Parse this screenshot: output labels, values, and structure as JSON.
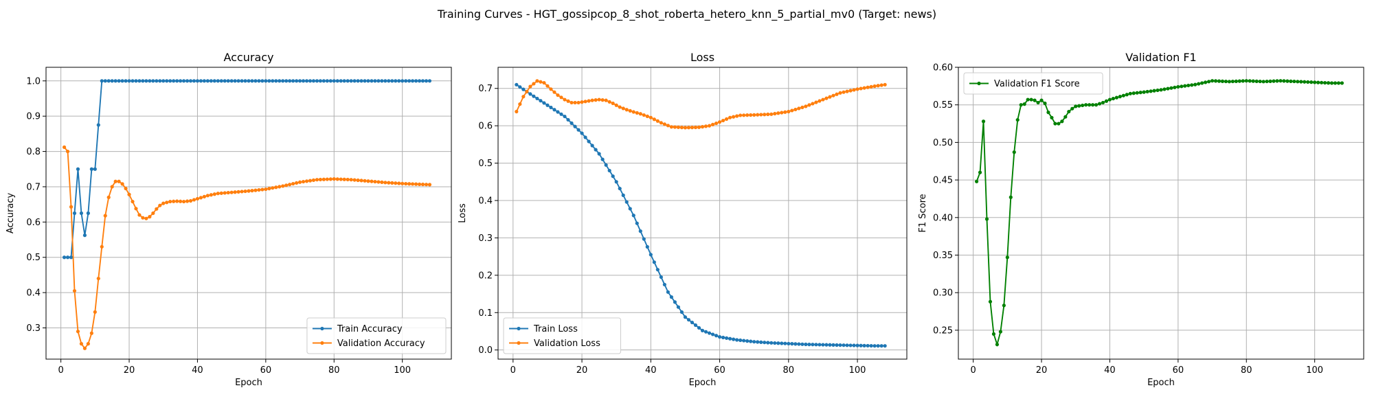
{
  "figure": {
    "suptitle": "Training Curves - HGT_gossipcop_8_shot_roberta_hetero_knn_5_partial_mv0 (Target: news)"
  },
  "chart_data": [
    {
      "type": "line",
      "title": "Accuracy",
      "xlabel": "Epoch",
      "ylabel": "Accuracy",
      "xlim": [
        -4.35,
        114.35
      ],
      "ylim": [
        0.2115,
        1.0385
      ],
      "xticks": [
        0,
        20,
        40,
        60,
        80,
        100
      ],
      "yticks": [
        0.3,
        0.4,
        0.5,
        0.6,
        0.7,
        0.8,
        0.9,
        1.0
      ],
      "ytick_decimals": 1,
      "grid": true,
      "legend_position": "lower right",
      "series": [
        {
          "name": "Train Accuracy",
          "color": "#1f77b4",
          "keypoints": [
            [
              1,
              0.5
            ],
            [
              2,
              0.5
            ],
            [
              3,
              0.5
            ],
            [
              4,
              0.625
            ],
            [
              5,
              0.75
            ],
            [
              6,
              0.625
            ],
            [
              7,
              0.5625
            ],
            [
              8,
              0.625
            ],
            [
              9,
              0.75
            ],
            [
              10,
              0.75
            ],
            [
              11,
              0.875
            ],
            [
              12,
              1.0
            ],
            [
              108,
              1.0
            ]
          ]
        },
        {
          "name": "Validation Accuracy",
          "color": "#ff7f0e",
          "keypoints": [
            [
              1,
              0.812
            ],
            [
              2,
              0.8
            ],
            [
              3,
              0.643
            ],
            [
              4,
              0.405
            ],
            [
              5,
              0.29
            ],
            [
              6,
              0.255
            ],
            [
              7,
              0.242
            ],
            [
              8,
              0.255
            ],
            [
              9,
              0.285
            ],
            [
              10,
              0.345
            ],
            [
              11,
              0.44
            ],
            [
              12,
              0.53
            ],
            [
              13,
              0.618
            ],
            [
              14,
              0.67
            ],
            [
              15,
              0.7
            ],
            [
              16,
              0.715
            ],
            [
              17,
              0.715
            ],
            [
              18,
              0.708
            ],
            [
              19,
              0.695
            ],
            [
              20,
              0.678
            ],
            [
              21,
              0.658
            ],
            [
              22,
              0.638
            ],
            [
              23,
              0.62
            ],
            [
              24,
              0.612
            ],
            [
              25,
              0.61
            ],
            [
              26,
              0.615
            ],
            [
              27,
              0.625
            ],
            [
              28,
              0.637
            ],
            [
              29,
              0.647
            ],
            [
              30,
              0.653
            ],
            [
              32,
              0.658
            ],
            [
              34,
              0.659
            ],
            [
              36,
              0.658
            ],
            [
              38,
              0.66
            ],
            [
              40,
              0.666
            ],
            [
              43,
              0.675
            ],
            [
              46,
              0.681
            ],
            [
              50,
              0.684
            ],
            [
              55,
              0.688
            ],
            [
              60,
              0.693
            ],
            [
              65,
              0.702
            ],
            [
              70,
              0.713
            ],
            [
              75,
              0.72
            ],
            [
              80,
              0.722
            ],
            [
              85,
              0.72
            ],
            [
              90,
              0.716
            ],
            [
              95,
              0.712
            ],
            [
              100,
              0.709
            ],
            [
              105,
              0.707
            ],
            [
              108,
              0.706
            ]
          ]
        }
      ]
    },
    {
      "type": "line",
      "title": "Loss",
      "xlabel": "Epoch",
      "ylabel": "Loss",
      "xlim": [
        -4.35,
        114.35
      ],
      "ylim": [
        -0.0245,
        0.7565
      ],
      "xticks": [
        0,
        20,
        40,
        60,
        80,
        100
      ],
      "yticks": [
        0.0,
        0.1,
        0.2,
        0.3,
        0.4,
        0.5,
        0.6,
        0.7
      ],
      "ytick_decimals": 1,
      "grid": true,
      "legend_position": "lower left",
      "series": [
        {
          "name": "Train Loss",
          "color": "#1f77b4",
          "keypoints": [
            [
              1,
              0.71
            ],
            [
              5,
              0.685
            ],
            [
              10,
              0.655
            ],
            [
              15,
              0.625
            ],
            [
              20,
              0.58
            ],
            [
              25,
              0.525
            ],
            [
              30,
              0.45
            ],
            [
              35,
              0.36
            ],
            [
              40,
              0.255
            ],
            [
              45,
              0.155
            ],
            [
              50,
              0.088
            ],
            [
              55,
              0.052
            ],
            [
              60,
              0.035
            ],
            [
              65,
              0.027
            ],
            [
              70,
              0.022
            ],
            [
              75,
              0.019
            ],
            [
              80,
              0.017
            ],
            [
              85,
              0.015
            ],
            [
              90,
              0.014
            ],
            [
              95,
              0.013
            ],
            [
              100,
              0.012
            ],
            [
              105,
              0.011
            ],
            [
              108,
              0.011
            ]
          ]
        },
        {
          "name": "Validation Loss",
          "color": "#ff7f0e",
          "keypoints": [
            [
              1,
              0.638
            ],
            [
              3,
              0.678
            ],
            [
              5,
              0.705
            ],
            [
              7,
              0.72
            ],
            [
              9,
              0.715
            ],
            [
              11,
              0.698
            ],
            [
              13,
              0.682
            ],
            [
              15,
              0.67
            ],
            [
              17,
              0.662
            ],
            [
              19,
              0.662
            ],
            [
              21,
              0.665
            ],
            [
              23,
              0.668
            ],
            [
              25,
              0.67
            ],
            [
              27,
              0.668
            ],
            [
              29,
              0.66
            ],
            [
              31,
              0.65
            ],
            [
              33,
              0.643
            ],
            [
              35,
              0.637
            ],
            [
              37,
              0.632
            ],
            [
              40,
              0.622
            ],
            [
              43,
              0.608
            ],
            [
              46,
              0.597
            ],
            [
              50,
              0.595
            ],
            [
              54,
              0.596
            ],
            [
              57,
              0.6
            ],
            [
              60,
              0.61
            ],
            [
              63,
              0.622
            ],
            [
              66,
              0.628
            ],
            [
              70,
              0.629
            ],
            [
              75,
              0.631
            ],
            [
              80,
              0.638
            ],
            [
              85,
              0.652
            ],
            [
              90,
              0.67
            ],
            [
              95,
              0.688
            ],
            [
              100,
              0.698
            ],
            [
              105,
              0.706
            ],
            [
              108,
              0.71
            ]
          ]
        }
      ]
    },
    {
      "type": "line",
      "title": "Validation F1",
      "xlabel": "Epoch",
      "ylabel": "F1 Score",
      "xlim": [
        -4.35,
        114.35
      ],
      "ylim": [
        0.2115,
        0.6
      ],
      "xticks": [
        0,
        20,
        40,
        60,
        80,
        100
      ],
      "yticks": [
        0.25,
        0.3,
        0.35,
        0.4,
        0.45,
        0.5,
        0.55,
        0.6
      ],
      "ytick_decimals": 2,
      "grid": true,
      "legend_position": "upper left",
      "series": [
        {
          "name": "Validation F1 Score",
          "color": "#008000",
          "keypoints": [
            [
              1,
              0.448
            ],
            [
              2,
              0.46
            ],
            [
              3,
              0.528
            ],
            [
              4,
              0.398
            ],
            [
              5,
              0.288
            ],
            [
              6,
              0.245
            ],
            [
              7,
              0.231
            ],
            [
              8,
              0.248
            ],
            [
              9,
              0.283
            ],
            [
              10,
              0.347
            ],
            [
              11,
              0.427
            ],
            [
              12,
              0.487
            ],
            [
              13,
              0.53
            ],
            [
              14,
              0.55
            ],
            [
              15,
              0.551
            ],
            [
              16,
              0.557
            ],
            [
              17,
              0.557
            ],
            [
              18,
              0.556
            ],
            [
              19,
              0.553
            ],
            [
              20,
              0.556
            ],
            [
              21,
              0.552
            ],
            [
              22,
              0.54
            ],
            [
              23,
              0.533
            ],
            [
              24,
              0.525
            ],
            [
              25,
              0.525
            ],
            [
              26,
              0.528
            ],
            [
              27,
              0.534
            ],
            [
              28,
              0.541
            ],
            [
              29,
              0.545
            ],
            [
              30,
              0.548
            ],
            [
              33,
              0.55
            ],
            [
              36,
              0.55
            ],
            [
              38,
              0.553
            ],
            [
              40,
              0.557
            ],
            [
              43,
              0.561
            ],
            [
              46,
              0.565
            ],
            [
              50,
              0.567
            ],
            [
              55,
              0.57
            ],
            [
              60,
              0.574
            ],
            [
              65,
              0.577
            ],
            [
              70,
              0.582
            ],
            [
              75,
              0.581
            ],
            [
              80,
              0.582
            ],
            [
              85,
              0.581
            ],
            [
              90,
              0.582
            ],
            [
              95,
              0.581
            ],
            [
              100,
              0.58
            ],
            [
              105,
              0.579
            ],
            [
              108,
              0.579
            ]
          ]
        }
      ]
    }
  ]
}
